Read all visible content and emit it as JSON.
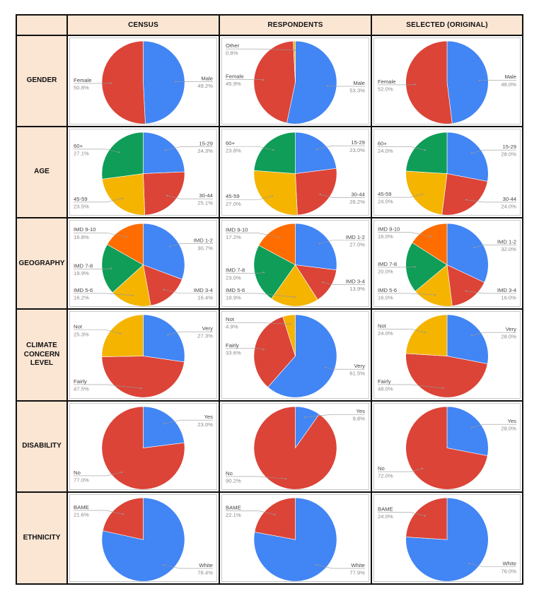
{
  "header": {
    "corner": "",
    "columns": [
      "CENSUS",
      "RESPONDENTS",
      "SELECTED (ORIGINAL)"
    ]
  },
  "rows": [
    "GENDER",
    "AGE",
    "GEOGRAPHY",
    "CLIMATE\nCONCERN\nLEVEL",
    "DISABILITY",
    "ETHNICITY"
  ],
  "colors": {
    "blue": "#4285f4",
    "red": "#db4437",
    "yellow": "#f4b400",
    "green": "#0f9d58",
    "orange": "#ff6d00",
    "label": "#444444",
    "pct": "#888888"
  },
  "chart_data": [
    {
      "type": "pie",
      "row": "GENDER",
      "column": "CENSUS",
      "start": 0,
      "slices": [
        {
          "label": "Male",
          "value": 49.2,
          "pct": "49.2%",
          "color": "blue"
        },
        {
          "label": "Female",
          "value": 50.8,
          "pct": "50.8%",
          "color": "red"
        }
      ]
    },
    {
      "type": "pie",
      "row": "GENDER",
      "column": "RESPONDENTS",
      "start": 0,
      "slices": [
        {
          "label": "Male",
          "value": 53.3,
          "pct": "53.3%",
          "color": "blue"
        },
        {
          "label": "Female",
          "value": 45.9,
          "pct": "45.9%",
          "color": "red"
        },
        {
          "label": "Other",
          "value": 0.8,
          "pct": "0.8%",
          "color": "yellow"
        }
      ]
    },
    {
      "type": "pie",
      "row": "GENDER",
      "column": "SELECTED (ORIGINAL)",
      "start": 0,
      "slices": [
        {
          "label": "Male",
          "value": 48.0,
          "pct": "48.0%",
          "color": "blue"
        },
        {
          "label": "Female",
          "value": 52.0,
          "pct": "52.0%",
          "color": "red"
        }
      ]
    },
    {
      "type": "pie",
      "row": "AGE",
      "column": "CENSUS",
      "start": 0,
      "slices": [
        {
          "label": "15-29",
          "value": 24.3,
          "pct": "24.3%",
          "color": "blue"
        },
        {
          "label": "30-44",
          "value": 25.1,
          "pct": "25.1%",
          "color": "red"
        },
        {
          "label": "45-59",
          "value": 23.5,
          "pct": "23.5%",
          "color": "yellow"
        },
        {
          "label": "60+",
          "value": 27.1,
          "pct": "27.1%",
          "color": "green"
        }
      ]
    },
    {
      "type": "pie",
      "row": "AGE",
      "column": "RESPONDENTS",
      "start": 0,
      "slices": [
        {
          "label": "15-29",
          "value": 23.0,
          "pct": "23.0%",
          "color": "blue"
        },
        {
          "label": "30-44",
          "value": 26.2,
          "pct": "26.2%",
          "color": "red"
        },
        {
          "label": "45-59",
          "value": 27.0,
          "pct": "27.0%",
          "color": "yellow"
        },
        {
          "label": "60+",
          "value": 23.8,
          "pct": "23.8%",
          "color": "green"
        }
      ]
    },
    {
      "type": "pie",
      "row": "AGE",
      "column": "SELECTED (ORIGINAL)",
      "start": 0,
      "slices": [
        {
          "label": "15-29",
          "value": 28.0,
          "pct": "28.0%",
          "color": "blue"
        },
        {
          "label": "30-44",
          "value": 24.0,
          "pct": "24.0%",
          "color": "red"
        },
        {
          "label": "45-59",
          "value": 24.0,
          "pct": "24.0%",
          "color": "yellow"
        },
        {
          "label": "60+",
          "value": 24.0,
          "pct": "24.0%",
          "color": "green"
        }
      ]
    },
    {
      "type": "pie",
      "row": "GEOGRAPHY",
      "column": "CENSUS",
      "start": 0,
      "slices": [
        {
          "label": "IMD 1-2",
          "value": 30.7,
          "pct": "30.7%",
          "color": "blue"
        },
        {
          "label": "IMD 3-4",
          "value": 16.4,
          "pct": "16.4%",
          "color": "red"
        },
        {
          "label": "IMD 5-6",
          "value": 16.2,
          "pct": "16.2%",
          "color": "yellow"
        },
        {
          "label": "IMD 7-8",
          "value": 19.9,
          "pct": "19.9%",
          "color": "green"
        },
        {
          "label": "IMD 9-10",
          "value": 16.8,
          "pct": "16.8%",
          "color": "orange"
        }
      ]
    },
    {
      "type": "pie",
      "row": "GEOGRAPHY",
      "column": "RESPONDENTS",
      "start": 0,
      "slices": [
        {
          "label": "IMD 1-2",
          "value": 27.0,
          "pct": "27.0%",
          "color": "blue"
        },
        {
          "label": "IMD 3-4",
          "value": 13.9,
          "pct": "13.9%",
          "color": "red"
        },
        {
          "label": "IMD 5-6",
          "value": 18.9,
          "pct": "18.9%",
          "color": "yellow"
        },
        {
          "label": "IMD 7-8",
          "value": 23.0,
          "pct": "23.0%",
          "color": "green"
        },
        {
          "label": "IMD 9-10",
          "value": 17.2,
          "pct": "17.2%",
          "color": "orange"
        }
      ]
    },
    {
      "type": "pie",
      "row": "GEOGRAPHY",
      "column": "SELECTED (ORIGINAL)",
      "start": 0,
      "slices": [
        {
          "label": "IMD 1-2",
          "value": 32.0,
          "pct": "32.0%",
          "color": "blue"
        },
        {
          "label": "IMD 3-4",
          "value": 16.0,
          "pct": "16.0%",
          "color": "red"
        },
        {
          "label": "IMD 5-6",
          "value": 16.0,
          "pct": "16.0%",
          "color": "yellow"
        },
        {
          "label": "IMD 7-8",
          "value": 20.0,
          "pct": "20.0%",
          "color": "green"
        },
        {
          "label": "IMD 9-10",
          "value": 16.0,
          "pct": "16.0%",
          "color": "orange"
        }
      ]
    },
    {
      "type": "pie",
      "row": "CLIMATE CONCERN LEVEL",
      "column": "CENSUS",
      "start": 0,
      "slices": [
        {
          "label": "Very",
          "value": 27.3,
          "pct": "27.3%",
          "color": "blue"
        },
        {
          "label": "Fairly",
          "value": 47.5,
          "pct": "47.5%",
          "color": "red"
        },
        {
          "label": "Not",
          "value": 25.3,
          "pct": "25.3%",
          "color": "yellow"
        }
      ]
    },
    {
      "type": "pie",
      "row": "CLIMATE CONCERN LEVEL",
      "column": "RESPONDENTS",
      "start": 0,
      "slices": [
        {
          "label": "Very",
          "value": 61.5,
          "pct": "61.5%",
          "color": "blue"
        },
        {
          "label": "Fairly",
          "value": 33.6,
          "pct": "33.6%",
          "color": "red"
        },
        {
          "label": "Not",
          "value": 4.9,
          "pct": "4.9%",
          "color": "yellow"
        }
      ]
    },
    {
      "type": "pie",
      "row": "CLIMATE CONCERN LEVEL",
      "column": "SELECTED (ORIGINAL)",
      "start": 0,
      "slices": [
        {
          "label": "Very",
          "value": 28.0,
          "pct": "28.0%",
          "color": "blue"
        },
        {
          "label": "Fairly",
          "value": 48.0,
          "pct": "48.0%",
          "color": "red"
        },
        {
          "label": "Not",
          "value": 24.0,
          "pct": "24.0%",
          "color": "yellow"
        }
      ]
    },
    {
      "type": "pie",
      "row": "DISABILITY",
      "column": "CENSUS",
      "start": 0,
      "slices": [
        {
          "label": "Yes",
          "value": 23.0,
          "pct": "23.0%",
          "color": "blue"
        },
        {
          "label": "No",
          "value": 77.0,
          "pct": "77.0%",
          "color": "red"
        }
      ]
    },
    {
      "type": "pie",
      "row": "DISABILITY",
      "column": "RESPONDENTS",
      "start": 0,
      "slices": [
        {
          "label": "Yes",
          "value": 9.8,
          "pct": "9.8%",
          "color": "blue"
        },
        {
          "label": "No",
          "value": 90.2,
          "pct": "90.2%",
          "color": "red"
        }
      ]
    },
    {
      "type": "pie",
      "row": "DISABILITY",
      "column": "SELECTED (ORIGINAL)",
      "start": 0,
      "slices": [
        {
          "label": "Yes",
          "value": 28.0,
          "pct": "28.0%",
          "color": "blue"
        },
        {
          "label": "No",
          "value": 72.0,
          "pct": "72.0%",
          "color": "red"
        }
      ]
    },
    {
      "type": "pie",
      "row": "ETHNICITY",
      "column": "CENSUS",
      "start": 0,
      "slices": [
        {
          "label": "White",
          "value": 78.4,
          "pct": "78.4%",
          "color": "blue"
        },
        {
          "label": "BAME",
          "value": 21.6,
          "pct": "21.6%",
          "color": "red"
        }
      ]
    },
    {
      "type": "pie",
      "row": "ETHNICITY",
      "column": "RESPONDENTS",
      "start": 0,
      "slices": [
        {
          "label": "White",
          "value": 77.9,
          "pct": "77.9%",
          "color": "blue"
        },
        {
          "label": "BAME",
          "value": 22.1,
          "pct": "22.1%",
          "color": "red"
        }
      ]
    },
    {
      "type": "pie",
      "row": "ETHNICITY",
      "column": "SELECTED (ORIGINAL)",
      "start": 0,
      "slices": [
        {
          "label": "White",
          "value": 76.0,
          "pct": "76.0%",
          "color": "blue"
        },
        {
          "label": "BAME",
          "value": 24.0,
          "pct": "24.0%",
          "color": "red"
        }
      ]
    }
  ]
}
